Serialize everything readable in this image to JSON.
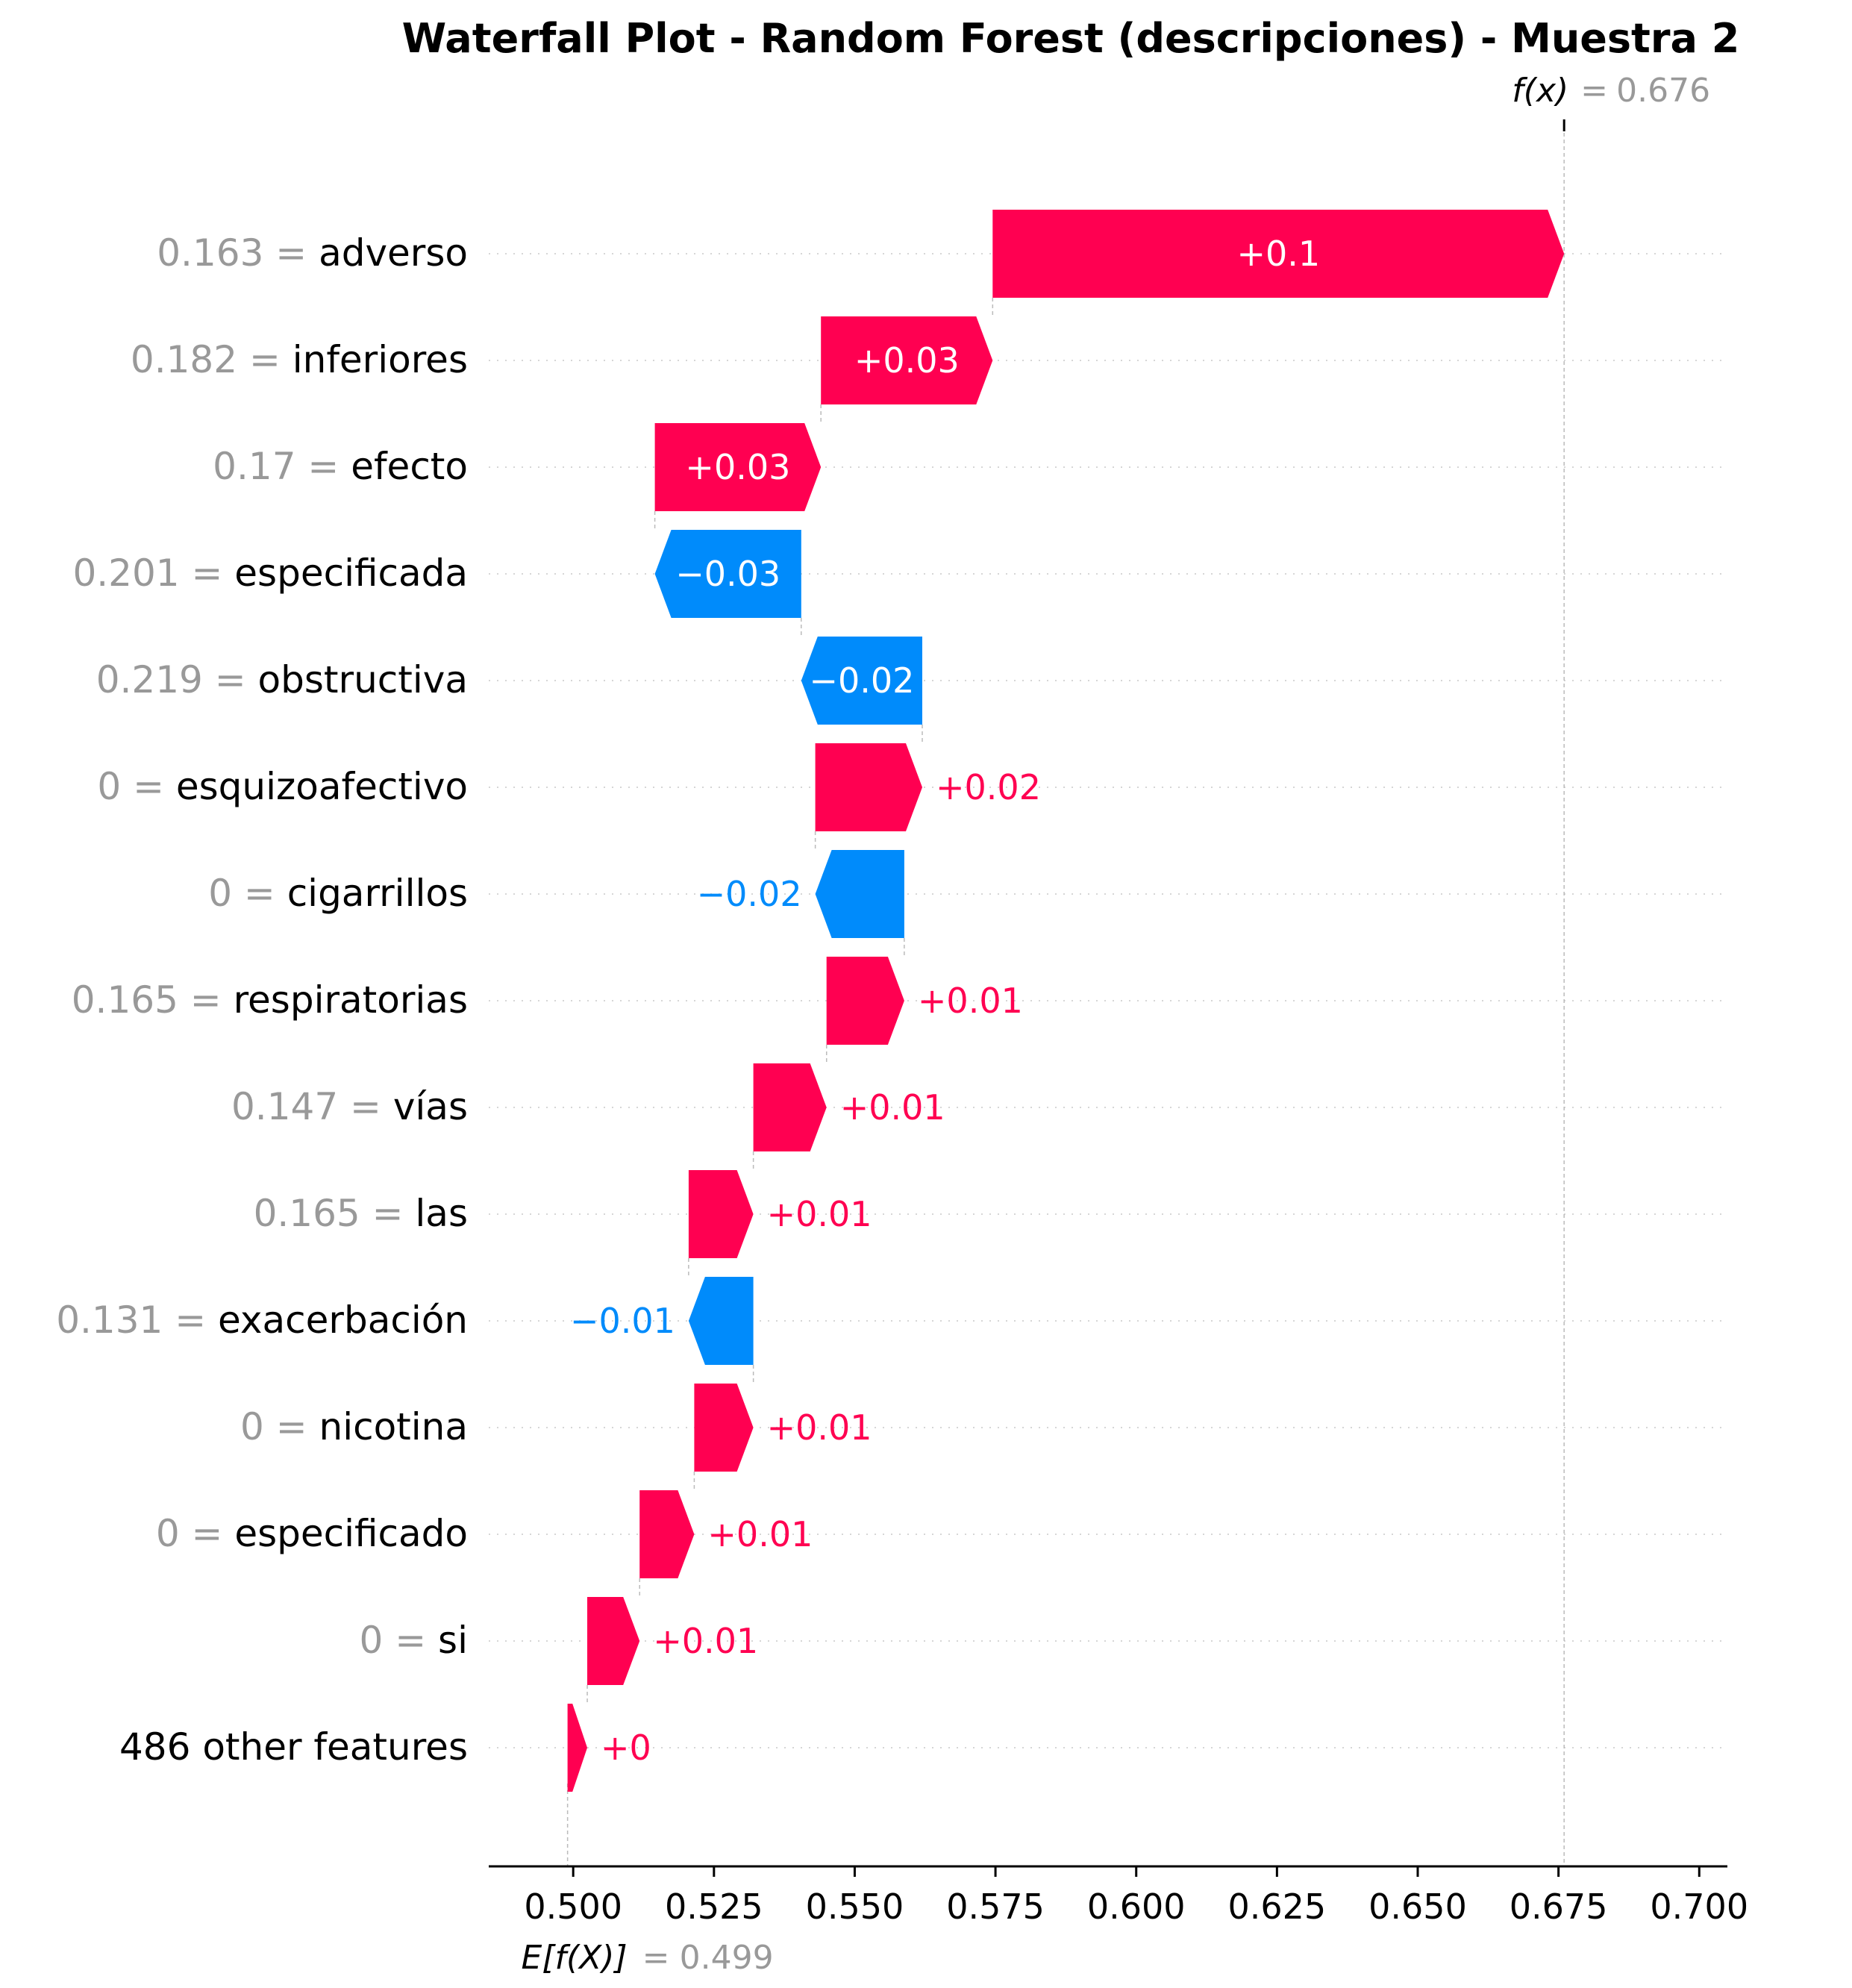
{
  "chart_data": {
    "type": "waterfall",
    "title": "Waterfall Plot - Random Forest (descripciones) - Muestra 2",
    "fx_label": "f(x)",
    "fx_equals": "=",
    "fx_value": "0.676",
    "fx": 0.676,
    "base_label": "E[f(X)]",
    "base_equals": "=",
    "base_value": "0.499",
    "base": 0.499,
    "xlim": [
      0.485,
      0.705
    ],
    "xticks": [
      0.5,
      0.525,
      0.55,
      0.575,
      0.6,
      0.625,
      0.65,
      0.675,
      0.7
    ],
    "xtick_labels": [
      "0.500",
      "0.525",
      "0.550",
      "0.575",
      "0.600",
      "0.625",
      "0.650",
      "0.675",
      "0.700"
    ],
    "colors": {
      "positive": "#ff0051",
      "negative": "#008bfb",
      "feature_value": "#999999"
    },
    "features": [
      {
        "value": "0.163",
        "name": "adverso",
        "start": 0.5745,
        "end": 0.676,
        "label": "+0.1"
      },
      {
        "value": "0.182",
        "name": "inferiores",
        "start": 0.544,
        "end": 0.5745,
        "label": "+0.03"
      },
      {
        "value": "0.17",
        "name": "efecto",
        "start": 0.5145,
        "end": 0.544,
        "label": "+0.03"
      },
      {
        "value": "0.201",
        "name": "especificada",
        "start": 0.5405,
        "end": 0.5145,
        "label": "−0.03"
      },
      {
        "value": "0.219",
        "name": "obstructiva",
        "start": 0.562,
        "end": 0.5405,
        "label": "−0.02"
      },
      {
        "value": "0",
        "name": "esquizoafectivo",
        "start": 0.543,
        "end": 0.562,
        "label": "+0.02"
      },
      {
        "value": "0",
        "name": "cigarrillos",
        "start": 0.5588,
        "end": 0.543,
        "label": "−0.02"
      },
      {
        "value": "0.165",
        "name": "respiratorias",
        "start": 0.545,
        "end": 0.5588,
        "label": "+0.01"
      },
      {
        "value": "0.147",
        "name": "vías",
        "start": 0.532,
        "end": 0.545,
        "label": "+0.01"
      },
      {
        "value": "0.165",
        "name": "las",
        "start": 0.5205,
        "end": 0.532,
        "label": "+0.01"
      },
      {
        "value": "0.131",
        "name": "exacerbación",
        "start": 0.532,
        "end": 0.5205,
        "label": "−0.01"
      },
      {
        "value": "0",
        "name": "nicotina",
        "start": 0.5215,
        "end": 0.532,
        "label": "+0.01"
      },
      {
        "value": "0",
        "name": "especificado",
        "start": 0.5118,
        "end": 0.5215,
        "label": "+0.01"
      },
      {
        "value": "0",
        "name": "si",
        "start": 0.5025,
        "end": 0.5118,
        "label": "+0.01"
      },
      {
        "value": "",
        "name": "486 other features",
        "start": 0.499,
        "end": 0.5025,
        "label": "+0"
      }
    ]
  }
}
